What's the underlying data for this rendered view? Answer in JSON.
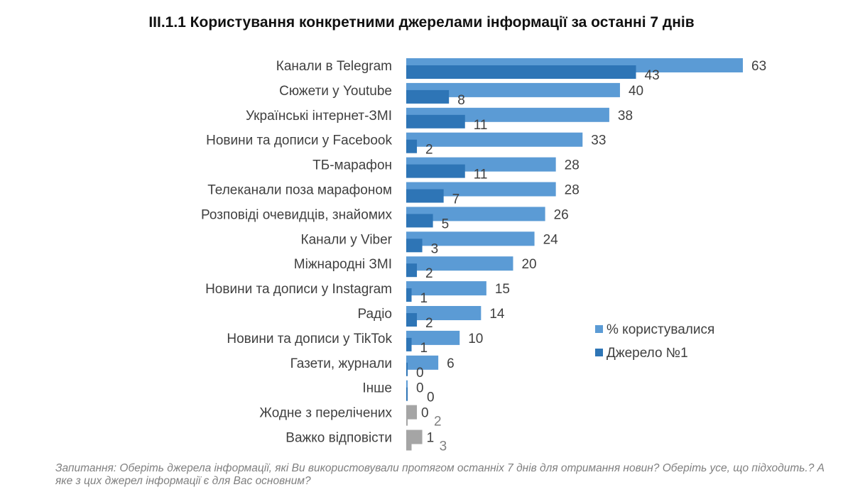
{
  "chart_data": {
    "type": "bar",
    "orientation": "horizontal",
    "title": "ІІІ.1.1 Користування конкретними джерелами інформації за останні 7 днів",
    "categories": [
      "Канали в Telegram",
      "Сюжети у Youtube",
      "Українські інтернет-ЗМІ",
      "Новини та дописи у Facebook",
      "ТБ-марафон",
      "Телеканали поза марафоном",
      "Розповіді очевидців, знайомих",
      "Канали у Viber",
      "Міжнародні ЗМІ",
      "Новини та дописи у Instagram",
      "Радіо",
      "Новини та дописи у TikTok",
      "Газети, журнали",
      "Інше",
      "Жодне з перелічених",
      "Важко відповісти"
    ],
    "series": [
      {
        "name": "% користувалися",
        "color": "#5b9bd5",
        "values": [
          63,
          40,
          38,
          33,
          28,
          28,
          26,
          24,
          20,
          15,
          14,
          10,
          6,
          0,
          2,
          3
        ]
      },
      {
        "name": "Джерело №1",
        "color": "#2e75b6",
        "values": [
          43,
          8,
          11,
          2,
          11,
          7,
          5,
          3,
          2,
          1,
          2,
          1,
          0,
          0,
          0,
          1
        ]
      }
    ],
    "gray_categories": [
      "Жодне з перелічених",
      "Важко відповісти"
    ],
    "gray_color": "#a5a5a5",
    "xlim": [
      0,
      63
    ],
    "grid": false,
    "axis_visible": false,
    "legend_position": "right"
  },
  "note": "Запитання: Оберіть джерела інформації, які Ви використовували протягом останніх 7 днів для отримання новин? Оберіть усе, що підходить.? А яке з цих джерел інформації є для Вас основним?"
}
